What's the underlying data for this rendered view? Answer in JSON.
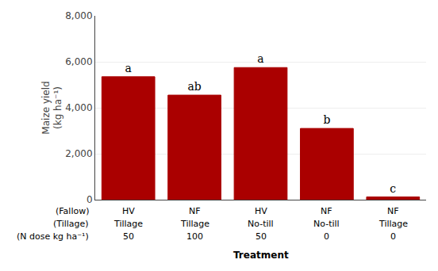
{
  "chart_data": {
    "type": "bar",
    "categories": [
      [
        "HV",
        "Tillage",
        "50"
      ],
      [
        "NF",
        "Tillage",
        "100"
      ],
      [
        "HV",
        "No-till",
        "50"
      ],
      [
        "NF",
        "No-till",
        "0"
      ],
      [
        "NF",
        "Tillage",
        "0"
      ]
    ],
    "row_labels": [
      "(Fallow)",
      "(Tillage)",
      "(N dose kg ha⁻¹)"
    ],
    "values": [
      5350,
      4550,
      5750,
      3100,
      120
    ],
    "annotations": [
      "a",
      "ab",
      "a",
      "b",
      "c"
    ],
    "color": "#AA0000",
    "xlabel": "Treatment",
    "ylabel": "Maize yield\n(kg ha⁻¹)",
    "ylim": [
      0,
      8000
    ],
    "yticks": [
      0,
      {
        "value": 2000,
        "label": "2,000"
      },
      {
        "value": 4000,
        "label": "4,000"
      },
      {
        "value": 6000,
        "label": "6,000"
      },
      {
        "value": 8000,
        "label": "8,000"
      }
    ],
    "grid": true
  }
}
